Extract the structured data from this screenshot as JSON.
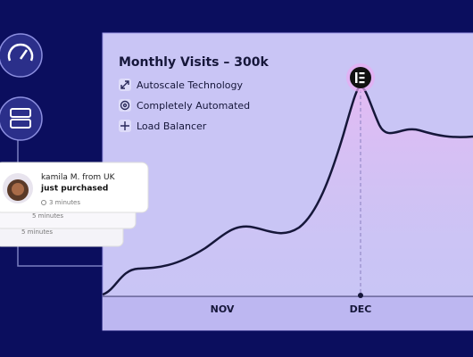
{
  "chart_panel": {
    "title": "Monthly Visits – 300k",
    "features": [
      "Autoscale Technology",
      "Completely Automated",
      "Load Balancer"
    ],
    "x_labels": [
      "NOV",
      "DEC"
    ]
  },
  "notifications": [
    {
      "name": "kamila M.",
      "origin": "from UK",
      "action": "just purchased",
      "time": "3 minutes"
    },
    {
      "time": "5 minutes"
    },
    {
      "time": "5 minutes"
    }
  ]
}
